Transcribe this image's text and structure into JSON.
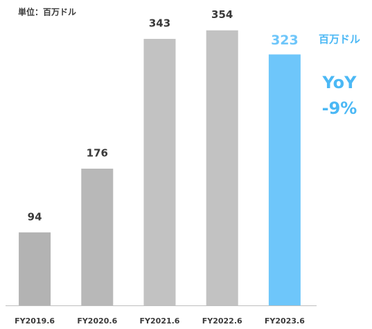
{
  "chart_data": {
    "type": "bar",
    "unit_label": "単位：百万ドル",
    "categories": [
      "FY2019.6",
      "FY2020.6",
      "FY2021.6",
      "FY2022.6",
      "FY2023.6"
    ],
    "values": [
      94,
      176,
      343,
      354,
      323
    ],
    "colors": [
      "#b3b3b3",
      "#b8b8b8",
      "#c2c2c2",
      "#c2c2c2",
      "#6ec6fa"
    ],
    "ylim": [
      0,
      360
    ],
    "annotations": [
      "百万ドル",
      "YoY",
      "-9%"
    ]
  }
}
